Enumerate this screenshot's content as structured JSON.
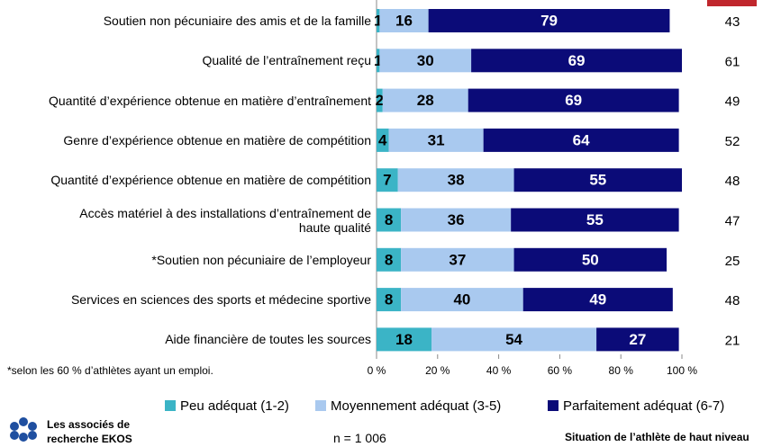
{
  "chart_data": {
    "type": "stacked-bar-horizontal",
    "categories": [
      "Soutien non pécuniaire des amis et de la famille",
      "Qualité de l’entraînement reçu",
      "Quantité d’expérience obtenue en matière d’entraînement",
      "Genre d’expérience obtenue en matière de compétition",
      "Quantité d’expérience obtenue en matière de compétition",
      "Accès matériel à des installations d’entraînement de\nhaute qualité",
      "*Soutien non pécuniaire de l’employeur",
      "Services en sciences des sports et médecine sportive",
      "Aide financière de toutes les sources"
    ],
    "series": [
      {
        "name": "Peu adéquat (1-2)",
        "color": "#3bb4c6",
        "values": [
          1,
          1,
          2,
          4,
          7,
          8,
          8,
          8,
          18
        ]
      },
      {
        "name": "Moyennement adéquat (3-5)",
        "color": "#a9c9ef",
        "values": [
          16,
          30,
          28,
          31,
          38,
          36,
          37,
          40,
          54
        ]
      },
      {
        "name": "Parfaitement adéquat (6-7)",
        "color": "#0b0b78",
        "values": [
          79,
          69,
          69,
          64,
          55,
          55,
          50,
          49,
          27
        ]
      }
    ],
    "n_values": [
      43,
      61,
      49,
      52,
      48,
      47,
      25,
      48,
      21
    ],
    "xlim": [
      0,
      100
    ],
    "xticks": [
      {
        "value": 0,
        "label": "0 %"
      },
      {
        "value": 20,
        "label": "20 %"
      },
      {
        "value": 40,
        "label": "40 %"
      },
      {
        "value": 60,
        "label": "60 %"
      },
      {
        "value": 80,
        "label": "80 %"
      },
      {
        "value": 100,
        "label": "100 %"
      }
    ],
    "footnote": "*selon les 60 % d’athlètes ayant un emploi.",
    "sample_size": "n = 1 006",
    "logo_text": "Les associés de\nrecherche EKOS",
    "footer_title": "Situation de l’athlète de haut niveau"
  }
}
